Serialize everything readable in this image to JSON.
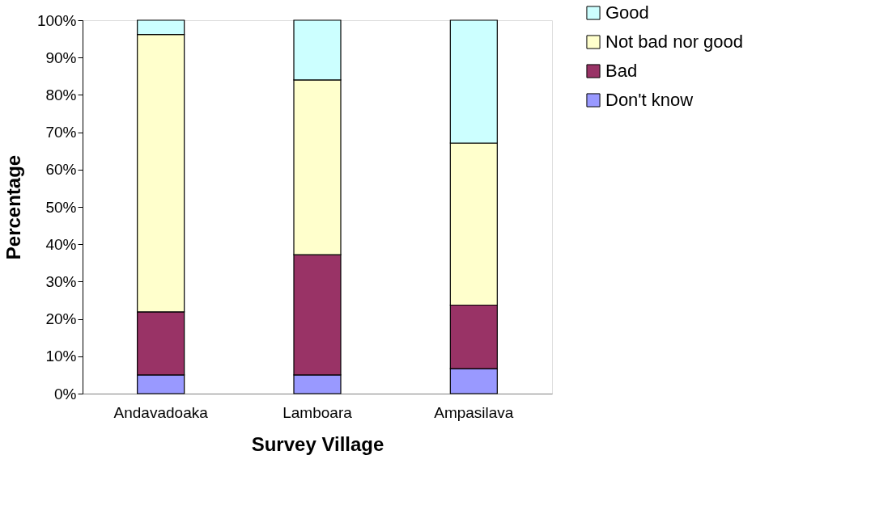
{
  "chart_data": {
    "type": "bar",
    "stacked": true,
    "xlabel": "Survey Village",
    "ylabel": "Percentage",
    "categories": [
      "Andavadoaka",
      "Lamboara",
      "Ampasilava"
    ],
    "series": [
      {
        "name": "Don't know",
        "color": "#9999ff",
        "values": [
          5.0,
          5.0,
          6.7
        ]
      },
      {
        "name": "Bad",
        "color": "#993366",
        "values": [
          16.9,
          32.2,
          17.0
        ]
      },
      {
        "name": "Not bad nor good",
        "color": "#ffffcc",
        "values": [
          74.3,
          46.8,
          43.4
        ]
      },
      {
        "name": "Good",
        "color": "#ccffff",
        "values": [
          3.8,
          16.0,
          32.9
        ]
      }
    ],
    "ylim": [
      0,
      100
    ],
    "yticks": [
      {
        "value": 0,
        "label": "0%"
      },
      {
        "value": 10,
        "label": "10%"
      },
      {
        "value": 20,
        "label": "20%"
      },
      {
        "value": 30,
        "label": "30%"
      },
      {
        "value": 40,
        "label": "40%"
      },
      {
        "value": 50,
        "label": "50%"
      },
      {
        "value": 60,
        "label": "60%"
      },
      {
        "value": 70,
        "label": "70%"
      },
      {
        "value": 80,
        "label": "80%"
      },
      {
        "value": 90,
        "label": "90%"
      },
      {
        "value": 100,
        "label": "100%"
      }
    ],
    "legend": "top right",
    "grid": false
  }
}
